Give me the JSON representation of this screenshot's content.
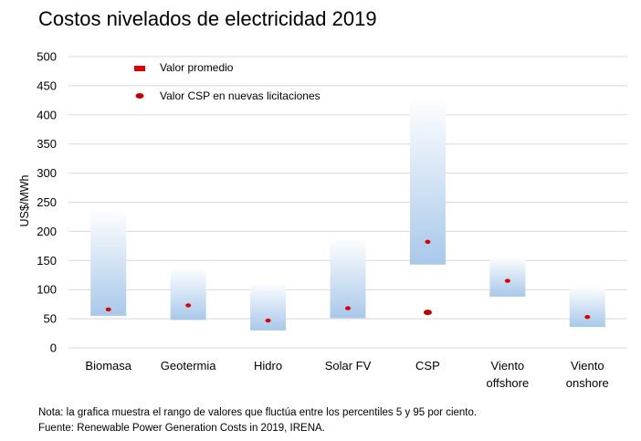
{
  "title": "Costos nivelados de electricidad 2019",
  "notes": [
    "Nota: la grafica muestra el rango de valores que fluctúa entre los percentiles 5 y 95 por ciento.",
    "Fuente: Renewable Power Generation Costs in 2019, IRENA."
  ],
  "chart_data": {
    "type": "bar",
    "ylabel": "US$/MWh",
    "ylim": [
      0,
      500
    ],
    "yticks": [
      "0",
      "50",
      "100",
      "150",
      "200",
      "250",
      "300",
      "350",
      "400",
      "450",
      "500"
    ],
    "grid": true,
    "legend_position": "top-left",
    "legend": [
      {
        "label": "Valor promedio",
        "marker": "rect",
        "color": "#e00000"
      },
      {
        "label": "Valor CSP en nuevas licitaciones",
        "marker": "ellipse",
        "color": "#c00000"
      }
    ],
    "categories": [
      {
        "lines": [
          "Biomasa"
        ],
        "low": 55,
        "high": 240,
        "avg": 66
      },
      {
        "lines": [
          "Geotermia"
        ],
        "low": 48,
        "high": 138,
        "avg": 73
      },
      {
        "lines": [
          "Hidro"
        ],
        "low": 30,
        "high": 112,
        "avg": 47
      },
      {
        "lines": [
          "Solar FV"
        ],
        "low": 51,
        "high": 189,
        "avg": 68
      },
      {
        "lines": [
          "CSP"
        ],
        "low": 143,
        "high": 432,
        "avg": 182,
        "tender": 61
      },
      {
        "lines": [
          "Viento",
          "offshore"
        ],
        "low": 88,
        "high": 157,
        "avg": 115
      },
      {
        "lines": [
          "Viento",
          "onshore"
        ],
        "low": 36,
        "high": 106,
        "avg": 53
      }
    ],
    "colors": {
      "band_top": "#ffffff",
      "band_bottom": "#a8c8ea",
      "avg": "#e00000",
      "tender": "#c00000",
      "grid": "#d9d9d9"
    }
  }
}
